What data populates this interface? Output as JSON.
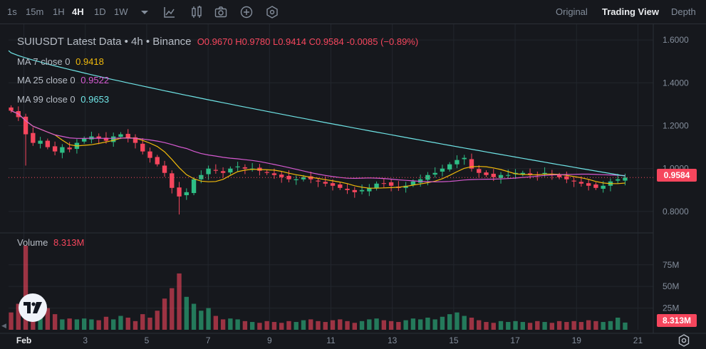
{
  "toolbar": {
    "intervals": [
      "1s",
      "15m",
      "1H",
      "4H",
      "1D",
      "1W"
    ],
    "active_interval": "4H",
    "icons": [
      "chevron-down-icon",
      "indicator-chart-icon",
      "bar-type-icon",
      "camera-icon",
      "add-icon",
      "settings-hex-icon"
    ],
    "views": [
      "Original",
      "Trading View",
      "Depth"
    ],
    "active_view": "Trading View"
  },
  "legend": {
    "title": "SUIUSDT Latest Data • 4h • Binance",
    "open": "O0.9670",
    "high": "H0.9780",
    "low": "L0.9414",
    "close": "C0.9584",
    "change": "-0.0085 (−0.89%)",
    "ma7_label": "MA 7 close 0",
    "ma7_value": "0.9418",
    "ma25_label": "MA 25 close 0",
    "ma25_value": "0.9522",
    "ma99_label": "MA 99 close 0",
    "ma99_value": "0.9653",
    "volume_label": "Volume",
    "volume_value": "8.313M"
  },
  "price_tag": "0.9584",
  "volume_tag": "8.313M",
  "colors": {
    "up": "#2ebd85",
    "down": "#f6465d",
    "ma7": "#f0b90b",
    "ma25": "#d65ad1",
    "ma99": "#6fe4e6",
    "grid": "#22262d",
    "axis_text": "#848e9c"
  },
  "chart_data": {
    "type": "candlestick",
    "symbol": "SUIUSDT",
    "interval": "4h",
    "price_axis": {
      "ticks": [
        "1.6000",
        "1.4000",
        "1.2000",
        "1.0000",
        "0.8000"
      ],
      "tick_values": [
        1.6,
        1.4,
        1.2,
        1.0,
        0.8
      ],
      "range": [
        0.73,
        1.66
      ]
    },
    "volume_axis": {
      "ticks": [
        "75M",
        "50M",
        "25M"
      ],
      "tick_values": [
        75,
        50,
        25
      ],
      "range": [
        0,
        97
      ]
    },
    "x_ticks": [
      "Feb",
      "3",
      "5",
      "7",
      "9",
      "11",
      "13",
      "15",
      "17",
      "19",
      "21"
    ],
    "x_tick_days": [
      1,
      3,
      5,
      7,
      9,
      11,
      13,
      15,
      17,
      19,
      21
    ],
    "day_range": [
      0.5,
      21.5
    ],
    "close_series": [
      1.27,
      1.24,
      1.16,
      1.12,
      1.13,
      1.1,
      1.08,
      1.1,
      1.09,
      1.12,
      1.14,
      1.15,
      1.14,
      1.13,
      1.15,
      1.16,
      1.14,
      1.12,
      1.08,
      1.05,
      1.02,
      0.98,
      0.91,
      0.87,
      0.89,
      0.95,
      0.97,
      1.0,
      0.99,
      0.98,
      1.0,
      1.01,
      1.0,
      1.0,
      0.99,
      0.98,
      0.97,
      0.96,
      0.95,
      0.95,
      0.96,
      0.95,
      0.94,
      0.93,
      0.92,
      0.91,
      0.9,
      0.89,
      0.9,
      0.91,
      0.93,
      0.93,
      0.92,
      0.91,
      0.92,
      0.94,
      0.95,
      0.97,
      0.98,
      1.0,
      1.02,
      1.04,
      1.05,
      1.0,
      0.98,
      0.97,
      0.96,
      0.97,
      0.97,
      0.98,
      0.98,
      0.97,
      0.97,
      0.98,
      0.97,
      0.96,
      0.95,
      0.94,
      0.93,
      0.92,
      0.91,
      0.92,
      0.94,
      0.95,
      0.9584
    ],
    "volume_series": [
      20,
      30,
      97,
      18,
      16,
      25,
      18,
      12,
      13,
      12,
      13,
      12,
      11,
      15,
      12,
      16,
      14,
      10,
      18,
      14,
      22,
      36,
      48,
      65,
      38,
      30,
      22,
      25,
      16,
      12,
      13,
      12,
      10,
      9,
      8,
      10,
      9,
      8,
      10,
      9,
      11,
      12,
      10,
      9,
      11,
      12,
      10,
      8,
      10,
      12,
      13,
      11,
      10,
      9,
      11,
      13,
      12,
      14,
      12,
      15,
      18,
      20,
      16,
      14,
      11,
      9,
      8,
      10,
      9,
      10,
      9,
      8,
      10,
      9,
      8,
      10,
      9,
      10,
      9,
      11,
      10,
      9,
      10,
      14,
      8.313
    ],
    "last_price": 0.9584,
    "last_volume_m": 8.313
  }
}
